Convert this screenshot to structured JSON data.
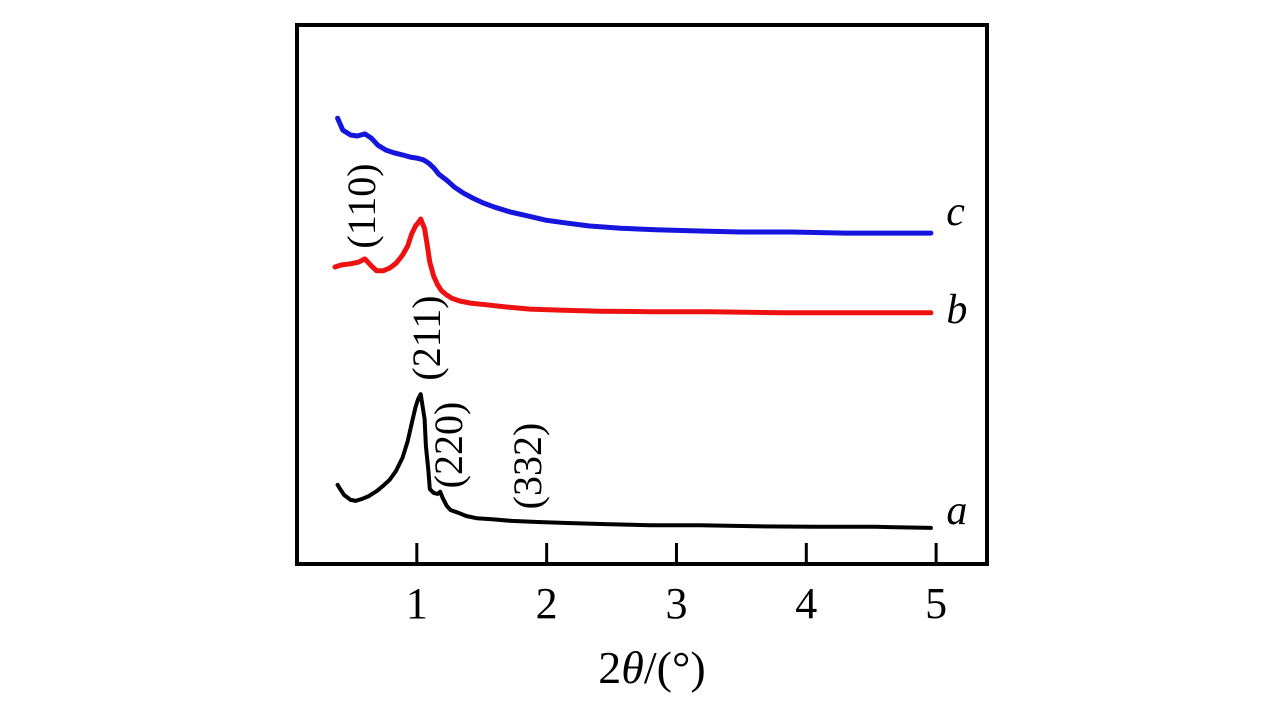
{
  "figure": {
    "kind": "small-angle XRD pattern figure",
    "background": "#ffffff"
  },
  "chart_data": {
    "type": "line",
    "title": "",
    "xlabel": "2θ/(°)",
    "ylabel": "",
    "xlim": [
      0.077,
      5.392
    ],
    "x_ticks": [
      1,
      2,
      3,
      4,
      5
    ],
    "grid": false,
    "legend_position": "curve-end-labels-inside-right",
    "y_units_note": "no y axis ticks shown; y values below are intensity as fraction of plot height (arbitrary units)",
    "axis_color": "#000000",
    "series": [
      {
        "name": "a",
        "color": "#000000",
        "stroke_width": 4,
        "label": "a",
        "label_pos": {
          "x": 5.16,
          "y": 0.098
        },
        "points": [
          [
            0.39,
            0.147
          ],
          [
            0.41,
            0.139
          ],
          [
            0.44,
            0.128
          ],
          [
            0.49,
            0.119
          ],
          [
            0.53,
            0.117
          ],
          [
            0.58,
            0.121
          ],
          [
            0.63,
            0.126
          ],
          [
            0.69,
            0.135
          ],
          [
            0.74,
            0.145
          ],
          [
            0.79,
            0.156
          ],
          [
            0.84,
            0.173
          ],
          [
            0.89,
            0.197
          ],
          [
            0.93,
            0.228
          ],
          [
            0.96,
            0.26
          ],
          [
            0.99,
            0.291
          ],
          [
            1.01,
            0.306
          ],
          [
            1.03,
            0.315
          ],
          [
            1.06,
            0.269
          ],
          [
            1.07,
            0.219
          ],
          [
            1.09,
            0.171
          ],
          [
            1.1,
            0.139
          ],
          [
            1.13,
            0.132
          ],
          [
            1.16,
            0.13
          ],
          [
            1.18,
            0.134
          ],
          [
            1.2,
            0.122
          ],
          [
            1.23,
            0.108
          ],
          [
            1.26,
            0.1
          ],
          [
            1.32,
            0.095
          ],
          [
            1.38,
            0.089
          ],
          [
            1.46,
            0.085
          ],
          [
            1.58,
            0.083
          ],
          [
            1.73,
            0.08
          ],
          [
            1.93,
            0.078
          ],
          [
            2.16,
            0.076
          ],
          [
            2.45,
            0.074
          ],
          [
            2.8,
            0.072
          ],
          [
            3.18,
            0.072
          ],
          [
            3.61,
            0.07
          ],
          [
            4.07,
            0.069
          ],
          [
            4.53,
            0.069
          ],
          [
            4.96,
            0.067
          ]
        ]
      },
      {
        "name": "b",
        "color": "#ee1111",
        "stroke_width": 5,
        "label": "b",
        "label_pos": {
          "x": 5.16,
          "y": 0.471
        },
        "points": [
          [
            0.37,
            0.551
          ],
          [
            0.42,
            0.555
          ],
          [
            0.49,
            0.557
          ],
          [
            0.55,
            0.56
          ],
          [
            0.6,
            0.566
          ],
          [
            0.65,
            0.553
          ],
          [
            0.69,
            0.544
          ],
          [
            0.74,
            0.544
          ],
          [
            0.79,
            0.549
          ],
          [
            0.84,
            0.558
          ],
          [
            0.89,
            0.573
          ],
          [
            0.93,
            0.59
          ],
          [
            0.96,
            0.612
          ],
          [
            0.99,
            0.627
          ],
          [
            1.02,
            0.636
          ],
          [
            1.03,
            0.64
          ],
          [
            1.06,
            0.622
          ],
          [
            1.08,
            0.592
          ],
          [
            1.1,
            0.56
          ],
          [
            1.13,
            0.534
          ],
          [
            1.16,
            0.518
          ],
          [
            1.19,
            0.507
          ],
          [
            1.23,
            0.499
          ],
          [
            1.27,
            0.493
          ],
          [
            1.33,
            0.488
          ],
          [
            1.41,
            0.484
          ],
          [
            1.53,
            0.481
          ],
          [
            1.68,
            0.477
          ],
          [
            1.87,
            0.473
          ],
          [
            2.1,
            0.471
          ],
          [
            2.41,
            0.469
          ],
          [
            2.8,
            0.468
          ],
          [
            3.26,
            0.468
          ],
          [
            3.8,
            0.466
          ],
          [
            4.41,
            0.466
          ],
          [
            4.96,
            0.466
          ]
        ]
      },
      {
        "name": "c",
        "color": "#1515dd",
        "stroke_width": 5,
        "label": "c",
        "label_pos": {
          "x": 5.15,
          "y": 0.653
        },
        "points": [
          [
            0.39,
            0.827
          ],
          [
            0.43,
            0.805
          ],
          [
            0.49,
            0.796
          ],
          [
            0.54,
            0.794
          ],
          [
            0.6,
            0.798
          ],
          [
            0.65,
            0.79
          ],
          [
            0.7,
            0.777
          ],
          [
            0.76,
            0.768
          ],
          [
            0.82,
            0.763
          ],
          [
            0.89,
            0.759
          ],
          [
            0.95,
            0.755
          ],
          [
            1.0,
            0.753
          ],
          [
            1.05,
            0.75
          ],
          [
            1.09,
            0.744
          ],
          [
            1.13,
            0.735
          ],
          [
            1.17,
            0.723
          ],
          [
            1.23,
            0.712
          ],
          [
            1.29,
            0.699
          ],
          [
            1.36,
            0.688
          ],
          [
            1.43,
            0.679
          ],
          [
            1.51,
            0.67
          ],
          [
            1.6,
            0.662
          ],
          [
            1.72,
            0.653
          ],
          [
            1.85,
            0.646
          ],
          [
            1.99,
            0.638
          ],
          [
            2.14,
            0.633
          ],
          [
            2.33,
            0.627
          ],
          [
            2.57,
            0.623
          ],
          [
            2.84,
            0.62
          ],
          [
            3.14,
            0.618
          ],
          [
            3.49,
            0.616
          ],
          [
            3.88,
            0.616
          ],
          [
            4.3,
            0.614
          ],
          [
            4.72,
            0.614
          ],
          [
            4.96,
            0.614
          ]
        ]
      }
    ],
    "annotations": [
      {
        "text": "(110)",
        "x": 0.58,
        "y": 0.664,
        "rotation": -90
      },
      {
        "text": "(211)",
        "x": 1.08,
        "y": 0.419,
        "rotation": -90
      },
      {
        "text": "(220)",
        "x": 1.25,
        "y": 0.221,
        "rotation": -90
      },
      {
        "text": "(332)",
        "x": 1.86,
        "y": 0.182,
        "rotation": -90
      }
    ]
  }
}
